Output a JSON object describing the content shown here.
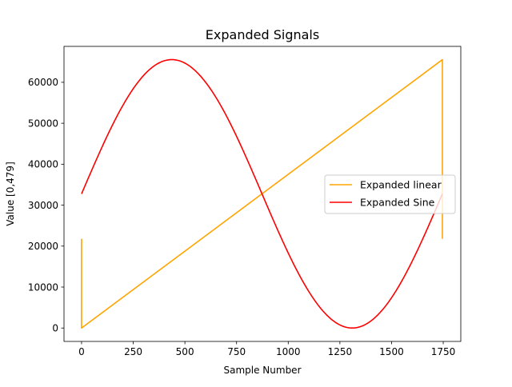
{
  "chart_data": {
    "type": "line",
    "title": "Expanded Signals",
    "xlabel": "Sample Number",
    "ylabel": "Value [0,479]",
    "xlim": [
      -85,
      1835
    ],
    "ylim": [
      -3275,
      68770
    ],
    "xticks": [
      0,
      250,
      500,
      750,
      1000,
      1250,
      1500,
      1750
    ],
    "xtick_labels": [
      "0",
      "250",
      "500",
      "750",
      "1000",
      "1250",
      "1500",
      "1750"
    ],
    "yticks": [
      0,
      10000,
      20000,
      30000,
      40000,
      50000,
      60000
    ],
    "ytick_labels": [
      "0",
      "10000",
      "20000",
      "30000",
      "40000",
      "50000",
      "60000"
    ],
    "grid": false,
    "legend_position": "center-right",
    "series": [
      {
        "name": "Expanded linear",
        "color": "#ffa500",
        "x": [
          0,
          0,
          1746,
          1746
        ],
        "y": [
          21800,
          0,
          65535,
          21800
        ]
      },
      {
        "name": "Expanded Sine",
        "color": "#ff0000",
        "function": "sine",
        "x_start": 0,
        "x_end": 1746,
        "period": 1746,
        "offset": 32767,
        "amplitude": 32768
      }
    ]
  }
}
